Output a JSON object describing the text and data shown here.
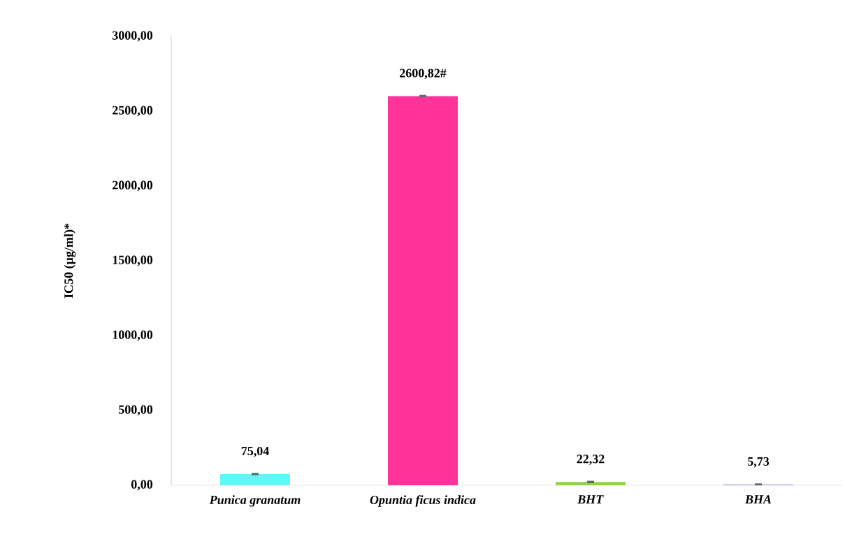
{
  "chart_data": {
    "type": "bar",
    "ylabel": "IC50 (µg/ml)*",
    "categories": [
      "*Punica granatum*",
      "*Opuntia ficus indica*",
      "*BHT*",
      "*BHA*"
    ],
    "values": [
      75.04,
      2600.82,
      22.32,
      5.73
    ],
    "errors": [
      3,
      3,
      3,
      2
    ],
    "colors": [
      "#5ff7f7",
      "#ff3399",
      "#92d050",
      "#b4a7d6"
    ],
    "value_labels": [
      "75,04",
      "2600,82#",
      "22,32",
      "5,73"
    ],
    "ylim": [
      0,
      3000
    ],
    "yticks": [
      {
        "value": 0,
        "label": "0,00"
      },
      {
        "value": 500,
        "label": "500,00"
      },
      {
        "value": 1000,
        "label": "1000,00"
      },
      {
        "value": 1500,
        "label": "1500,00"
      },
      {
        "value": 2000,
        "label": "2000,00"
      },
      {
        "value": 2500,
        "label": "2500,00"
      },
      {
        "value": 3000,
        "label": "3000,00"
      }
    ],
    "grid": false
  }
}
